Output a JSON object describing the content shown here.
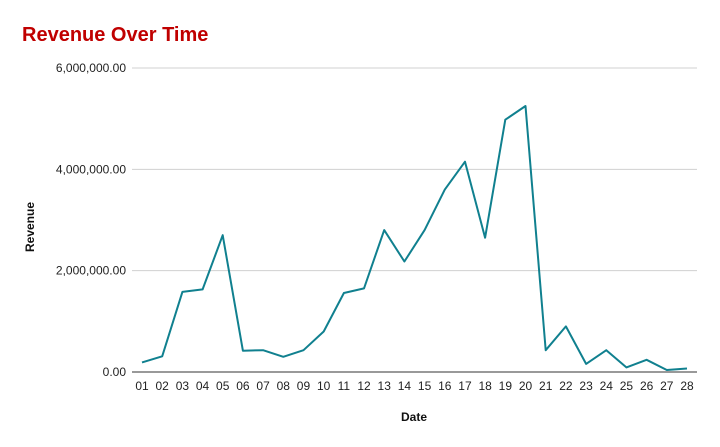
{
  "colors": {
    "title": "#c00000",
    "line": "#10808f",
    "grid": "#d0d0d0",
    "axis": "#333333"
  },
  "chart_data": {
    "type": "line",
    "title": "Revenue Over Time",
    "xlabel": "Date",
    "ylabel": "Revenue",
    "ylim": [
      0,
      6000000
    ],
    "yticks": [
      0,
      2000000,
      4000000,
      6000000
    ],
    "ytick_labels": [
      "0.00",
      "2,000,000.00",
      "4,000,000.00",
      "6,000,000.00"
    ],
    "grid": true,
    "legend": "none",
    "categories": [
      "01",
      "02",
      "03",
      "04",
      "05",
      "06",
      "07",
      "08",
      "09",
      "10",
      "11",
      "12",
      "13",
      "14",
      "15",
      "16",
      "17",
      "18",
      "19",
      "20",
      "21",
      "22",
      "23",
      "24",
      "25",
      "26",
      "27",
      "28"
    ],
    "series": [
      {
        "values": [
          190000,
          310000,
          1580000,
          1630000,
          2700000,
          420000,
          430000,
          300000,
          430000,
          800000,
          1560000,
          1650000,
          2800000,
          2180000,
          2800000,
          3600000,
          4150000,
          2650000,
          4980000,
          5250000,
          430000,
          900000,
          160000,
          430000,
          90000,
          240000,
          40000,
          70000
        ]
      }
    ]
  }
}
